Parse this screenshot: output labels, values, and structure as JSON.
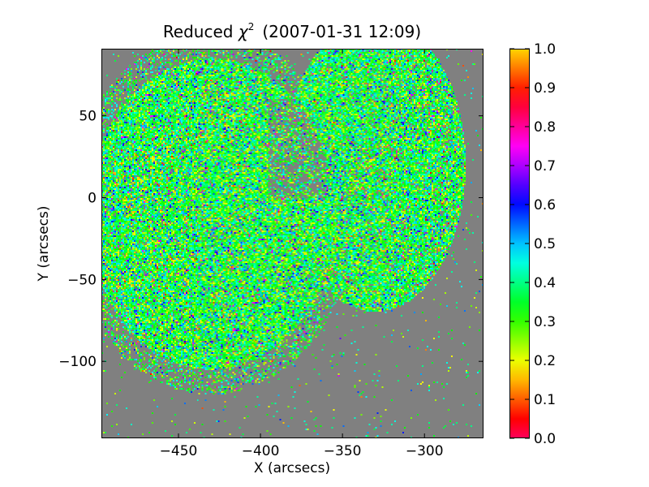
{
  "chart_data": {
    "type": "heatmap",
    "title": "Reduced χ² (2007-01-31 12:09)",
    "title_parts": {
      "main": "Reduced ",
      "symbol": "χ",
      "exponent": "2",
      "date": "(2007-01-31 12:09)"
    },
    "xlabel": "X (arcsecs)",
    "ylabel": "Y (arcsecs)",
    "xlim": [
      -497,
      -264
    ],
    "ylim": [
      -147,
      91
    ],
    "xticks": [
      -450,
      -400,
      -350,
      -300
    ],
    "xtick_labels": [
      "−450",
      "−400",
      "−350",
      "−300"
    ],
    "yticks": [
      50,
      0,
      -50,
      -100
    ],
    "ytick_labels": [
      "50",
      "0",
      "−50",
      "−100"
    ],
    "colorbar": {
      "colormap": "gist_rainbow_r",
      "range": [
        0.0,
        1.0
      ],
      "ticks": [
        1.0,
        0.9,
        0.8,
        0.7,
        0.6,
        0.5,
        0.4,
        0.3,
        0.2,
        0.1,
        0.0
      ],
      "tick_labels": [
        "1.0",
        "0.9",
        "0.8",
        "0.7",
        "0.6",
        "0.5",
        "0.4",
        "0.3",
        "0.2",
        "0.1",
        "0.0"
      ]
    },
    "background_color": "#808080",
    "value_distribution": {
      "typical": 0.35,
      "spread": 0.1,
      "min": 0.05,
      "max": 0.9
    },
    "coverage_regions": [
      {
        "name": "western-lobe",
        "x_range": [
          -497,
          -360
        ],
        "y_range": [
          -120,
          91
        ]
      },
      {
        "name": "eastern-arc",
        "x_range": [
          -395,
          -285
        ],
        "y_range": [
          -70,
          91
        ]
      }
    ],
    "grid": false
  }
}
